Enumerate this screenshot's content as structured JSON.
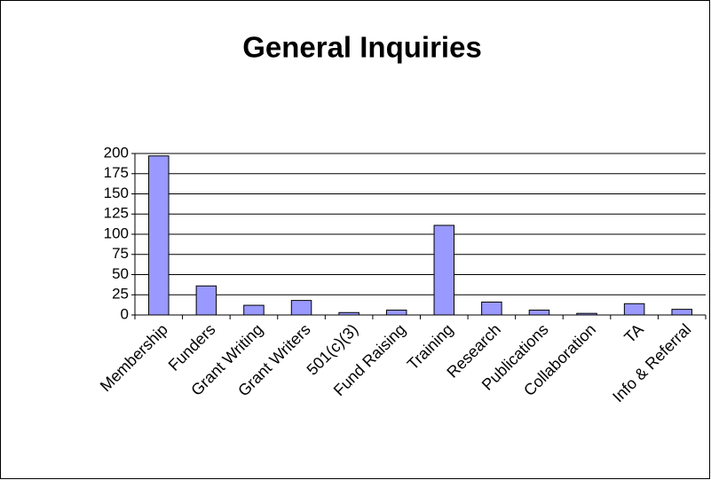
{
  "chart_data": {
    "type": "bar",
    "title": "General Inquiries",
    "categories": [
      "Membership",
      "Funders",
      "Grant Writing",
      "Grant Writers",
      "501(c)(3)",
      "Fund Raising",
      "Training",
      "Research",
      "Publications",
      "Collaboration",
      "TA",
      "Info & Referral"
    ],
    "values": [
      197,
      36,
      12,
      18,
      3,
      6,
      111,
      16,
      6,
      2,
      14,
      7
    ],
    "color": "#9999ff",
    "ylim": [
      0,
      200
    ],
    "yticks": [
      0,
      25,
      50,
      75,
      100,
      125,
      150,
      175,
      200
    ],
    "grid": true
  }
}
